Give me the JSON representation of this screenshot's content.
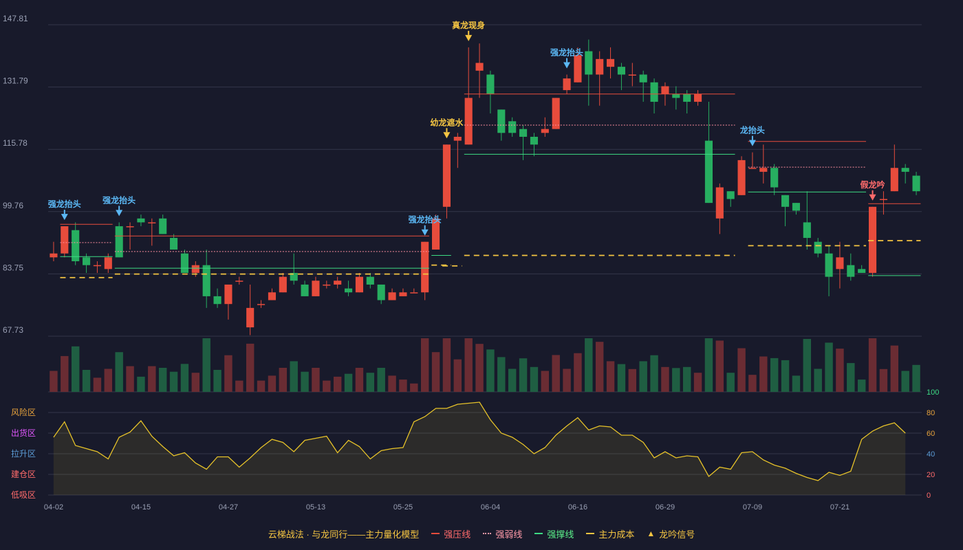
{
  "chart_data": {
    "type": "candlestick",
    "price_axis": {
      "ticks": [
        "147.81",
        "131.79",
        "115.78",
        "99.76",
        "83.75",
        "67.73"
      ],
      "min": 67.73,
      "max": 147.81
    },
    "date_ticks": [
      "04-02",
      "04-15",
      "04-27",
      "05-13",
      "05-25",
      "06-04",
      "06-16",
      "06-29",
      "07-09",
      "07-21"
    ],
    "candles": [
      [
        88,
        89,
        87,
        92
      ],
      [
        89,
        96,
        88,
        96
      ],
      [
        95,
        87,
        86,
        97
      ],
      [
        88,
        86,
        84,
        89
      ],
      [
        86,
        86,
        84,
        87
      ],
      [
        85,
        88,
        84,
        89
      ],
      [
        96,
        88,
        88,
        97
      ],
      [
        96,
        96,
        90,
        97
      ],
      [
        98,
        97,
        96,
        99
      ],
      [
        97,
        97,
        91,
        98
      ],
      [
        98,
        94,
        94,
        99
      ],
      [
        93,
        90,
        90,
        94
      ],
      [
        89,
        84,
        84,
        90
      ],
      [
        84,
        86,
        83,
        87
      ],
      [
        86,
        78,
        75,
        90
      ],
      [
        78,
        76,
        75,
        80
      ],
      [
        76,
        81,
        72,
        81
      ],
      [
        82,
        82,
        81,
        83
      ],
      [
        70,
        75,
        68,
        81
      ],
      [
        76,
        76,
        75,
        77
      ],
      [
        77,
        79,
        77,
        80
      ],
      [
        79,
        83,
        79,
        84
      ],
      [
        84,
        82,
        81,
        89
      ],
      [
        81,
        78,
        78,
        82
      ],
      [
        78,
        82,
        78,
        83
      ],
      [
        81,
        81,
        80,
        82
      ],
      [
        81,
        82,
        80,
        83
      ],
      [
        80,
        79,
        78,
        82
      ],
      [
        79,
        83,
        79,
        84
      ],
      [
        83,
        81,
        80,
        84
      ],
      [
        81,
        77,
        76,
        81
      ],
      [
        77,
        79,
        77,
        80
      ],
      [
        78,
        79,
        78,
        80
      ],
      [
        79,
        79,
        79,
        80
      ],
      [
        79,
        92,
        77,
        92
      ],
      [
        90,
        98,
        90,
        99
      ],
      [
        101,
        117,
        98,
        117
      ],
      [
        118,
        119,
        111,
        120
      ],
      [
        117,
        129,
        117,
        142
      ],
      [
        136,
        138,
        129,
        143
      ],
      [
        135,
        130,
        125,
        136
      ],
      [
        126,
        120,
        118,
        126
      ],
      [
        123,
        120,
        119,
        124
      ],
      [
        121,
        119,
        113,
        122
      ],
      [
        119,
        117,
        114,
        120
      ],
      [
        120,
        121,
        119,
        124
      ],
      [
        121,
        129,
        121,
        129
      ],
      [
        131,
        134,
        130,
        135
      ],
      [
        133,
        140,
        133,
        142
      ],
      [
        141,
        135,
        127,
        144
      ],
      [
        135,
        139,
        127,
        141
      ],
      [
        137,
        139,
        134,
        142
      ],
      [
        137,
        135,
        131,
        138
      ],
      [
        135,
        135,
        132,
        138
      ],
      [
        135,
        133,
        128,
        136
      ],
      [
        133,
        128,
        125,
        134
      ],
      [
        130,
        132,
        127,
        133
      ],
      [
        130,
        129,
        126,
        132
      ],
      [
        130,
        128,
        125,
        131
      ],
      [
        128,
        130,
        127,
        131
      ],
      [
        118,
        102,
        102,
        128
      ],
      [
        98,
        106,
        94,
        107
      ],
      [
        105,
        103,
        101,
        105
      ],
      [
        104,
        113,
        104,
        114
      ],
      [
        111,
        111,
        111,
        115
      ],
      [
        110,
        111,
        107,
        117
      ],
      [
        111,
        106,
        104,
        112
      ],
      [
        104,
        101,
        96,
        104
      ],
      [
        102,
        100,
        99,
        102
      ],
      [
        97,
        93,
        90,
        105
      ],
      [
        92,
        89,
        88,
        93
      ],
      [
        89,
        83,
        78,
        91
      ],
      [
        85,
        88,
        80,
        92
      ],
      [
        86,
        83,
        82,
        89
      ],
      [
        85,
        84,
        84,
        86
      ],
      [
        84,
        101,
        83,
        101
      ],
      [
        103,
        103,
        99,
        105
      ],
      [
        105,
        111,
        105,
        117
      ],
      [
        111,
        110,
        107,
        112
      ],
      [
        109,
        105,
        104,
        110
      ]
    ],
    "volume": [],
    "indicator": {
      "axis_ticks": [
        "100",
        "80",
        "60",
        "40",
        "20",
        "0"
      ],
      "zones": [
        "风险区",
        "出货区",
        "拉升区",
        "建仓区",
        "低吸区"
      ],
      "values": [
        56,
        71,
        48,
        45,
        42,
        35,
        56,
        61,
        72,
        57,
        47,
        38,
        41,
        31,
        25,
        37,
        37,
        27,
        36,
        46,
        54,
        51,
        42,
        53,
        55,
        57,
        41,
        53,
        47,
        35,
        43,
        45,
        46,
        71,
        76,
        84,
        84,
        88,
        89,
        90,
        73,
        60,
        56,
        49,
        40,
        46,
        58,
        67,
        75,
        63,
        67,
        66,
        58,
        58,
        51,
        36,
        42,
        36,
        38,
        37,
        18,
        27,
        25,
        41,
        42,
        34,
        29,
        26,
        21,
        17,
        14,
        22,
        19,
        23,
        54,
        62,
        67,
        70,
        60
      ]
    },
    "levels": [
      {
        "type": "pressure",
        "x": [
          1,
          5
        ],
        "y": 96.5
      },
      {
        "type": "weak",
        "x": [
          1,
          5
        ],
        "y": 91.8
      },
      {
        "type": "support",
        "x": [
          1,
          5
        ],
        "y": 88.2
      },
      {
        "type": "cost",
        "x": [
          1,
          5
        ],
        "y": 82.8
      },
      {
        "type": "pressure",
        "x": [
          6,
          34
        ],
        "y": 93.5
      },
      {
        "type": "weak",
        "x": [
          6,
          34
        ],
        "y": 89.5
      },
      {
        "type": "support",
        "x": [
          6,
          34
        ],
        "y": 85.2
      },
      {
        "type": "cost",
        "x": [
          6,
          34
        ],
        "y": 83.7
      },
      {
        "type": "cost",
        "x": [
          35,
          36
        ],
        "y": 86.0
      },
      {
        "type": "support",
        "x": [
          35,
          36
        ],
        "y": 88.5
      },
      {
        "type": "cost",
        "x": [
          36,
          37
        ],
        "y": 85.8
      },
      {
        "type": "pressure",
        "x": [
          38,
          62
        ],
        "y": 130.0
      },
      {
        "type": "weak",
        "x": [
          38,
          62
        ],
        "y": 122.0
      },
      {
        "type": "support",
        "x": [
          38,
          62
        ],
        "y": 114.5
      },
      {
        "type": "cost",
        "x": [
          38,
          62
        ],
        "y": 88.5
      },
      {
        "type": "pressure",
        "x": [
          64,
          74
        ],
        "y": 117.8
      },
      {
        "type": "weak",
        "x": [
          64,
          74
        ],
        "y": 111.2
      },
      {
        "type": "support",
        "x": [
          64,
          74
        ],
        "y": 104.8
      },
      {
        "type": "cost",
        "x": [
          64,
          74
        ],
        "y": 91.0
      },
      {
        "type": "pressure",
        "x": [
          75,
          79
        ],
        "y": 101.8
      },
      {
        "type": "cost",
        "x": [
          75,
          79
        ],
        "y": 92.3
      },
      {
        "type": "support",
        "x": [
          75,
          79
        ],
        "y": 83.3
      }
    ],
    "signals": [
      {
        "i": 1,
        "label": "强龙抬头",
        "kind": "blue"
      },
      {
        "i": 6,
        "label": "强龙抬头",
        "kind": "blue"
      },
      {
        "i": 34,
        "label": "强龙抬头",
        "kind": "blue"
      },
      {
        "i": 36,
        "label": "幼龙遮水",
        "kind": "gold"
      },
      {
        "i": 38,
        "label": "真龙现身",
        "kind": "gold"
      },
      {
        "i": 47,
        "label": "强龙抬头",
        "kind": "blue"
      },
      {
        "i": 64,
        "label": "龙抬头",
        "kind": "blue"
      },
      {
        "i": 75,
        "label": "假龙吟",
        "kind": "red"
      }
    ]
  },
  "legend": {
    "title": "云梯战法 · 与龙同行——主力量化模型",
    "items": [
      "强压线",
      "强弱线",
      "强撑线",
      "主力成本",
      "龙吟信号"
    ]
  },
  "colors": {
    "up": "#e74c3c",
    "down": "#27ae60",
    "grid": "#33364a",
    "indicator": "#e6c229"
  }
}
